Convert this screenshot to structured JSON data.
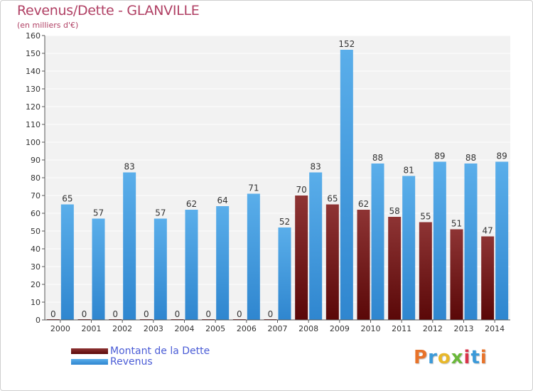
{
  "chart_data": {
    "type": "bar",
    "title": "Revenus/Dette - GLANVILLE",
    "subtitle": "(en milliers d'€)",
    "categories": [
      "2000",
      "2001",
      "2002",
      "2003",
      "2004",
      "2005",
      "2006",
      "2007",
      "2008",
      "2009",
      "2010",
      "2011",
      "2012",
      "2013",
      "2014"
    ],
    "series": [
      {
        "name": "Montant de la Dette",
        "values": [
          0,
          0,
          0,
          0,
          0,
          0,
          0,
          0,
          70,
          65,
          62,
          58,
          55,
          51,
          47
        ],
        "color": "#7a1a1a"
      },
      {
        "name": "Revenus",
        "values": [
          65,
          57,
          83,
          57,
          62,
          64,
          71,
          52,
          83,
          152,
          88,
          81,
          89,
          88,
          89
        ],
        "color": "#3f9ae3"
      }
    ],
    "ylim": [
      0,
      160
    ],
    "yticks": [
      0,
      10,
      20,
      30,
      40,
      50,
      60,
      70,
      80,
      90,
      100,
      110,
      120,
      130,
      140,
      150,
      160
    ],
    "grid": true,
    "legend_position": "bottom-left"
  },
  "logo": {
    "text": "Proxiti",
    "colors": [
      "#e8732a",
      "#3b9ad9",
      "#e8b82a",
      "#6ab83a",
      "#d9344a",
      "#3b9ad9",
      "#e8732a"
    ]
  }
}
